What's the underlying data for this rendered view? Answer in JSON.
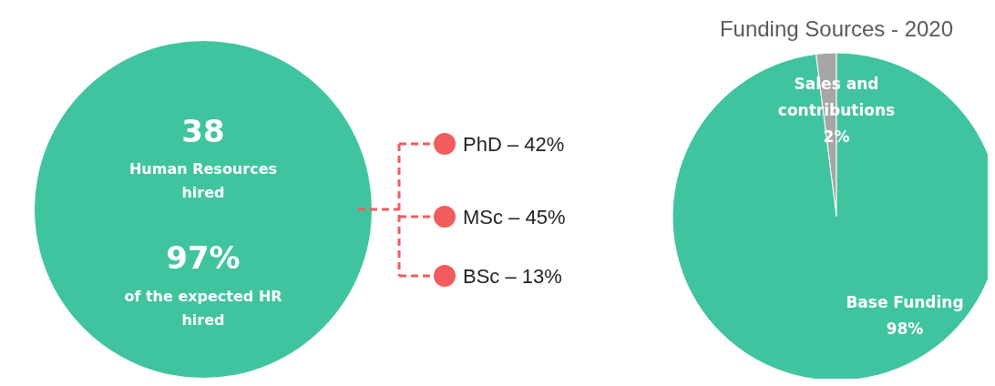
{
  "chart_data": [
    {
      "type": "other",
      "annotations": [
        "38",
        "Human Resources hired",
        "97%",
        "of the expected HR hired",
        "PhD – 42%",
        "MSc – 45%",
        "BSc – 13%"
      ]
    },
    {
      "type": "pie",
      "title": "Funding Sources - 2020",
      "categories": [
        "Sales and contributions",
        "Base Funding"
      ],
      "values": [
        2,
        98
      ],
      "colors": [
        "#a6a6a6",
        "#40c4a0"
      ],
      "value_labels": [
        "2%",
        "98%"
      ]
    }
  ]
}
